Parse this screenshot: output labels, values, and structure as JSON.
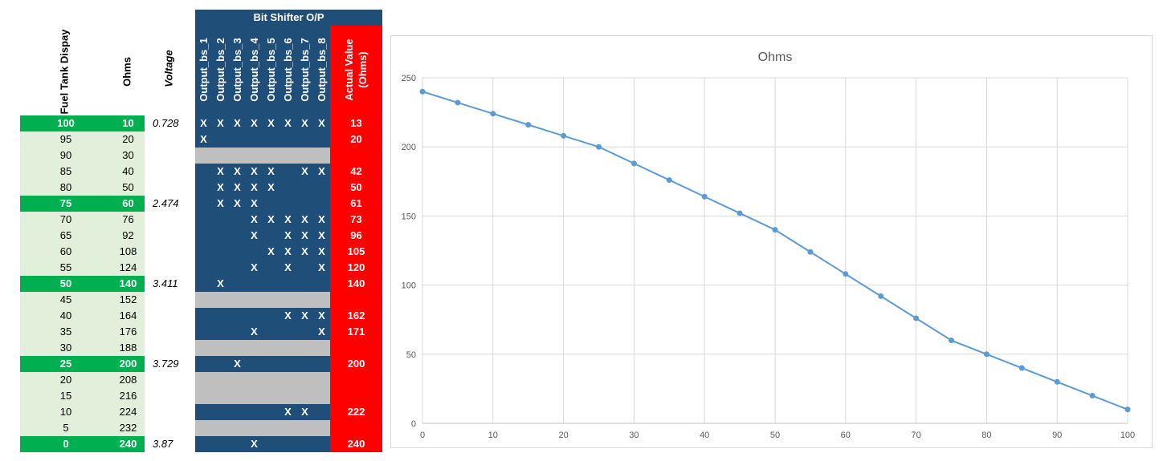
{
  "headers": {
    "fuel": "Fuel Tank Dispay",
    "ohms": "Ohms",
    "voltage": "Voltage",
    "bit_shifter_title": "Bit Shifter O/P",
    "outputs": [
      "Output_bs_1",
      "Output_bs_2",
      "Output_bs_3",
      "Output_bs_4",
      "Output_bs_5",
      "Output_bs_6",
      "Output_bs_7",
      "Output_bs_8"
    ],
    "actual_line1": "Actual Value",
    "actual_line2": "(Ohms)"
  },
  "colors": {
    "green_highlight": "#00b050",
    "light_green": "#e2efda",
    "navy": "#1f4e79",
    "red": "#ff0000",
    "gray": "#bfbfbf",
    "series": "#5b9bd5"
  },
  "rows": [
    {
      "fuel": "100",
      "ohms": "10",
      "voltage": "0.728",
      "highlight": true,
      "x": [
        1,
        1,
        1,
        1,
        1,
        1,
        1,
        1
      ],
      "actual": "13",
      "gray": false
    },
    {
      "fuel": "95",
      "ohms": "20",
      "voltage": "",
      "highlight": false,
      "x": [
        1,
        0,
        0,
        0,
        0,
        0,
        0,
        0
      ],
      "actual": "20",
      "gray": false
    },
    {
      "fuel": "90",
      "ohms": "30",
      "voltage": "",
      "highlight": false,
      "x": [
        0,
        0,
        0,
        0,
        0,
        0,
        0,
        0
      ],
      "actual": "",
      "gray": true
    },
    {
      "fuel": "85",
      "ohms": "40",
      "voltage": "",
      "highlight": false,
      "x": [
        0,
        1,
        1,
        1,
        1,
        0,
        1,
        1
      ],
      "actual": "42",
      "gray": false
    },
    {
      "fuel": "80",
      "ohms": "50",
      "voltage": "",
      "highlight": false,
      "x": [
        0,
        1,
        1,
        1,
        1,
        0,
        0,
        0
      ],
      "actual": "50",
      "gray": false
    },
    {
      "fuel": "75",
      "ohms": "60",
      "voltage": "2.474",
      "highlight": true,
      "x": [
        0,
        1,
        1,
        1,
        0,
        0,
        0,
        0
      ],
      "actual": "61",
      "gray": false
    },
    {
      "fuel": "70",
      "ohms": "76",
      "voltage": "",
      "highlight": false,
      "x": [
        0,
        0,
        0,
        1,
        1,
        1,
        1,
        1
      ],
      "actual": "73",
      "gray": false
    },
    {
      "fuel": "65",
      "ohms": "92",
      "voltage": "",
      "highlight": false,
      "x": [
        0,
        0,
        0,
        1,
        0,
        1,
        1,
        1
      ],
      "actual": "96",
      "gray": false
    },
    {
      "fuel": "60",
      "ohms": "108",
      "voltage": "",
      "highlight": false,
      "x": [
        0,
        0,
        0,
        0,
        1,
        1,
        1,
        1
      ],
      "actual": "105",
      "gray": false
    },
    {
      "fuel": "55",
      "ohms": "124",
      "voltage": "",
      "highlight": false,
      "x": [
        0,
        0,
        0,
        1,
        0,
        1,
        0,
        1
      ],
      "actual": "120",
      "gray": false
    },
    {
      "fuel": "50",
      "ohms": "140",
      "voltage": "3.411",
      "highlight": true,
      "x": [
        0,
        1,
        0,
        0,
        0,
        0,
        0,
        0
      ],
      "actual": "140",
      "gray": false
    },
    {
      "fuel": "45",
      "ohms": "152",
      "voltage": "",
      "highlight": false,
      "x": [
        0,
        0,
        0,
        0,
        0,
        0,
        0,
        0
      ],
      "actual": "",
      "gray": true
    },
    {
      "fuel": "40",
      "ohms": "164",
      "voltage": "",
      "highlight": false,
      "x": [
        0,
        0,
        0,
        0,
        0,
        1,
        1,
        1
      ],
      "actual": "162",
      "gray": false
    },
    {
      "fuel": "35",
      "ohms": "176",
      "voltage": "",
      "highlight": false,
      "x": [
        0,
        0,
        0,
        1,
        0,
        0,
        0,
        1
      ],
      "actual": "171",
      "gray": false
    },
    {
      "fuel": "30",
      "ohms": "188",
      "voltage": "",
      "highlight": false,
      "x": [
        0,
        0,
        0,
        0,
        0,
        0,
        0,
        0
      ],
      "actual": "",
      "gray": true
    },
    {
      "fuel": "25",
      "ohms": "200",
      "voltage": "3.729",
      "highlight": true,
      "x": [
        0,
        0,
        1,
        0,
        0,
        0,
        0,
        0
      ],
      "actual": "200",
      "gray": false
    },
    {
      "fuel": "20",
      "ohms": "208",
      "voltage": "",
      "highlight": false,
      "x": [
        0,
        0,
        0,
        0,
        0,
        0,
        0,
        0
      ],
      "actual": "",
      "gray": true
    },
    {
      "fuel": "15",
      "ohms": "216",
      "voltage": "",
      "highlight": false,
      "x": [
        0,
        0,
        0,
        0,
        0,
        0,
        0,
        0
      ],
      "actual": "",
      "gray": true
    },
    {
      "fuel": "10",
      "ohms": "224",
      "voltage": "",
      "highlight": false,
      "x": [
        0,
        0,
        0,
        0,
        0,
        1,
        1,
        0
      ],
      "actual": "222",
      "gray": false
    },
    {
      "fuel": "5",
      "ohms": "232",
      "voltage": "",
      "highlight": false,
      "x": [
        0,
        0,
        0,
        0,
        0,
        0,
        0,
        0
      ],
      "actual": "",
      "gray": true
    },
    {
      "fuel": "0",
      "ohms": "240",
      "voltage": "3.87",
      "highlight": true,
      "x": [
        0,
        0,
        0,
        1,
        0,
        0,
        0,
        0
      ],
      "actual": "240",
      "gray": false
    }
  ],
  "x_mark": "X",
  "chart_data": {
    "type": "line",
    "title": "Ohms",
    "x": [
      0,
      5,
      10,
      15,
      20,
      25,
      30,
      35,
      40,
      45,
      50,
      55,
      60,
      65,
      70,
      75,
      80,
      85,
      90,
      95,
      100
    ],
    "series": [
      {
        "name": "Ohms",
        "values": [
          240,
          232,
          224,
          216,
          208,
          200,
          188,
          176,
          164,
          152,
          140,
          124,
          108,
          92,
          76,
          60,
          50,
          40,
          30,
          20,
          10
        ]
      }
    ],
    "xlim": [
      0,
      100
    ],
    "ylim": [
      0,
      250
    ],
    "xticks": [
      0,
      10,
      20,
      30,
      40,
      50,
      60,
      70,
      80,
      90,
      100
    ],
    "yticks": [
      0,
      50,
      100,
      150,
      200,
      250
    ],
    "grid": true,
    "legend": "none"
  }
}
